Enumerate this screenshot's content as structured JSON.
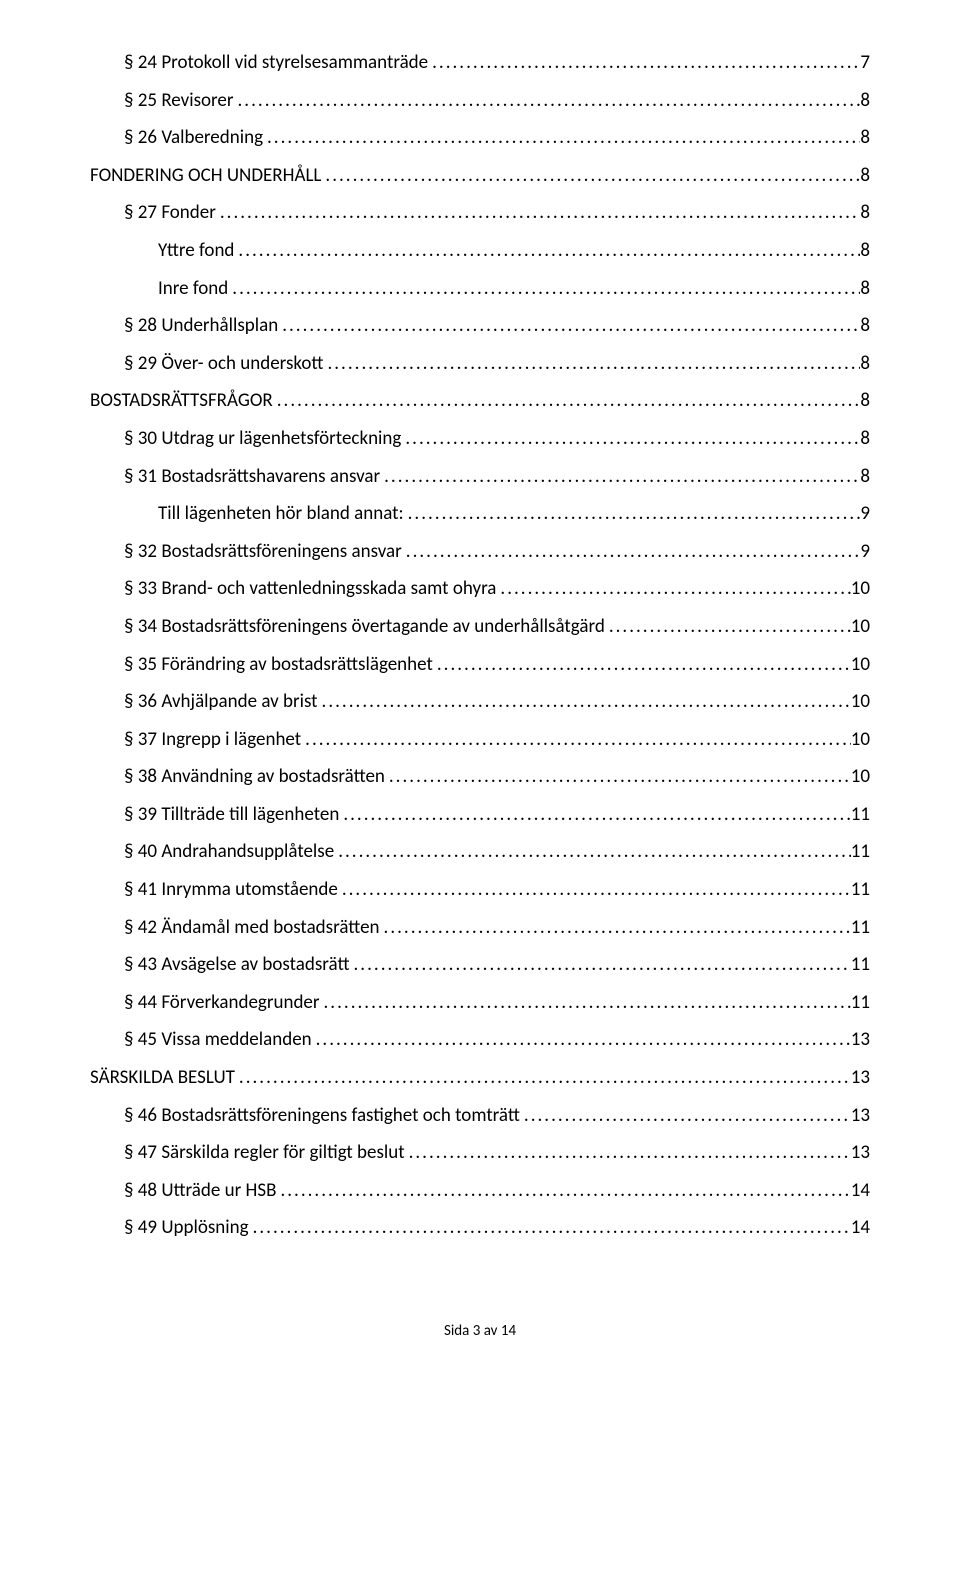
{
  "toc": [
    {
      "label": "§ 24 Protokoll vid styrelsesammanträde",
      "page": "7",
      "indent": 1
    },
    {
      "label": "§ 25 Revisorer",
      "page": "8",
      "indent": 1
    },
    {
      "label": "§ 26 Valberedning",
      "page": "8",
      "indent": 1
    },
    {
      "label": "FONDERING OCH UNDERHÅLL",
      "page": "8",
      "indent": 0
    },
    {
      "label": "§ 27 Fonder",
      "page": "8",
      "indent": 1
    },
    {
      "label": "Yttre fond",
      "page": "8",
      "indent": 2
    },
    {
      "label": "Inre fond",
      "page": "8",
      "indent": 2
    },
    {
      "label": "§ 28 Underhållsplan",
      "page": "8",
      "indent": 1
    },
    {
      "label": "§ 29 Över- och underskott",
      "page": "8",
      "indent": 1
    },
    {
      "label": "BOSTADSRÄTTSFRÅGOR",
      "page": "8",
      "indent": 0
    },
    {
      "label": "§ 30 Utdrag ur lägenhetsförteckning",
      "page": "8",
      "indent": 1
    },
    {
      "label": "§ 31 Bostadsrättshavarens ansvar",
      "page": "8",
      "indent": 1
    },
    {
      "label": "Till lägenheten hör bland annat:",
      "page": "9",
      "indent": 2
    },
    {
      "label": "§ 32 Bostadsrättsföreningens ansvar",
      "page": "9",
      "indent": 1
    },
    {
      "label": "§ 33 Brand- och vattenledningsskada samt ohyra",
      "page": "10",
      "indent": 1
    },
    {
      "label": "§ 34 Bostadsrättsföreningens övertagande av underhållsåtgärd",
      "page": "10",
      "indent": 1
    },
    {
      "label": "§ 35 Förändring av bostadsrättslägenhet",
      "page": "10",
      "indent": 1
    },
    {
      "label": "§ 36 Avhjälpande av brist",
      "page": "10",
      "indent": 1
    },
    {
      "label": "§ 37 Ingrepp i lägenhet",
      "page": "10",
      "indent": 1
    },
    {
      "label": "§ 38 Användning av bostadsrätten",
      "page": "10",
      "indent": 1
    },
    {
      "label": "§ 39 Tillträde till lägenheten",
      "page": "11",
      "indent": 1
    },
    {
      "label": "§ 40 Andrahandsupplåtelse",
      "page": "11",
      "indent": 1
    },
    {
      "label": "§ 41 Inrymma utomstående",
      "page": "11",
      "indent": 1
    },
    {
      "label": "§ 42 Ändamål med bostadsrätten",
      "page": "11",
      "indent": 1
    },
    {
      "label": "§ 43 Avsägelse av bostadsrätt",
      "page": "11",
      "indent": 1
    },
    {
      "label": "§ 44 Förverkandegrunder",
      "page": "11",
      "indent": 1
    },
    {
      "label": "§ 45 Vissa meddelanden",
      "page": "13",
      "indent": 1
    },
    {
      "label": "SÄRSKILDA BESLUT",
      "page": "13",
      "indent": 0
    },
    {
      "label": "§ 46 Bostadsrättsföreningens fastighet och tomträtt",
      "page": "13",
      "indent": 1
    },
    {
      "label": "§ 47 Särskilda regler för giltigt beslut",
      "page": "13",
      "indent": 1
    },
    {
      "label": "§ 48 Utträde ur HSB",
      "page": "14",
      "indent": 1
    },
    {
      "label": "§ 49 Upplösning",
      "page": "14",
      "indent": 1
    }
  ],
  "footer": "Sida 3 av 14"
}
